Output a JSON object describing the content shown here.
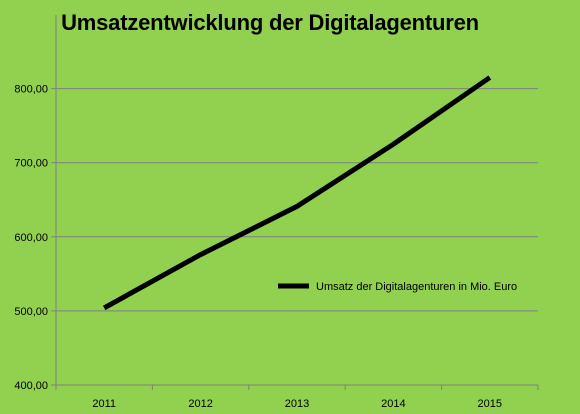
{
  "chart_data": {
    "type": "line",
    "title": "Umsatzentwicklung der Digitalagenturen",
    "xlabel": "",
    "ylabel": "",
    "categories": [
      "2011",
      "2012",
      "2013",
      "2014",
      "2015"
    ],
    "series": [
      {
        "name": "Umsatz  der Digitalagenturen in Mio. Euro",
        "values": [
          504,
          576,
          641,
          725,
          815
        ]
      }
    ],
    "ylim": [
      400,
      800
    ],
    "yticks": [
      "400,00",
      "500,00",
      "600,00",
      "700,00",
      "800,00"
    ],
    "grid": true,
    "legend": "right",
    "colors": {
      "background": "#92d050",
      "line": "#000000",
      "grid": "#7f7f7f"
    }
  }
}
